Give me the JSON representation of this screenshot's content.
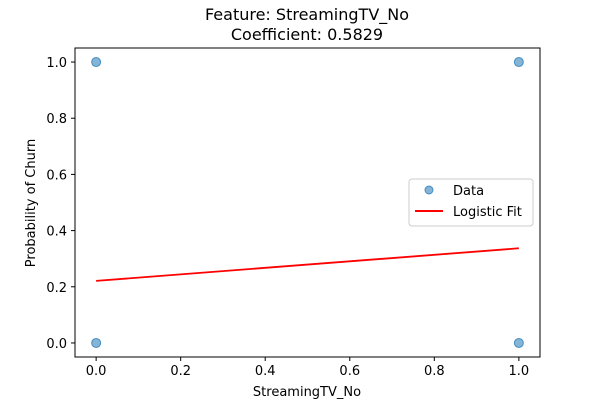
{
  "chart_data": {
    "type": "scatter",
    "title": "Feature: StreamingTV_No",
    "subtitle": "Coefficient: 0.5829",
    "xlabel": "StreamingTV_No",
    "ylabel": "Probability of Churn",
    "xlim": [
      -0.05,
      1.05
    ],
    "ylim": [
      -0.05,
      1.05
    ],
    "xticks": [
      0.0,
      0.2,
      0.4,
      0.6,
      0.8,
      1.0
    ],
    "yticks": [
      0.0,
      0.2,
      0.4,
      0.6,
      0.8,
      1.0
    ],
    "xtick_labels": [
      "0.0",
      "0.2",
      "0.4",
      "0.6",
      "0.8",
      "1.0"
    ],
    "ytick_labels": [
      "0.0",
      "0.2",
      "0.4",
      "0.6",
      "0.8",
      "1.0"
    ],
    "grid": false,
    "legend_position": "right",
    "series": [
      {
        "name": "Data",
        "kind": "scatter",
        "color": "#1f77b4",
        "x": [
          0,
          0,
          1,
          1
        ],
        "y": [
          0,
          1,
          0,
          1
        ]
      },
      {
        "name": "Logistic Fit",
        "kind": "line",
        "color": "#ff0000",
        "x": [
          0,
          1
        ],
        "y": [
          0.221,
          0.337
        ]
      }
    ]
  }
}
